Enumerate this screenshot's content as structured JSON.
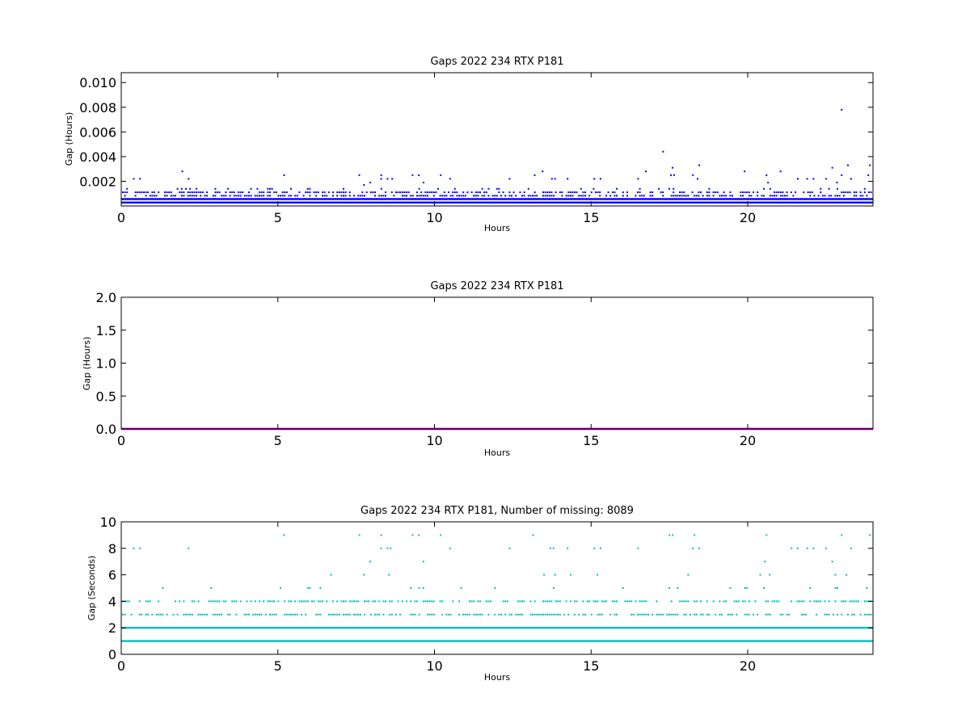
{
  "chart_data": [
    {
      "type": "scatter",
      "title": "Gaps 2022 234 RTX  P181",
      "xlabel": "Hours",
      "ylabel": "Gap (Hours)",
      "xlim": [
        0,
        24
      ],
      "ylim": [
        0,
        0.0108
      ],
      "xticks": [
        0,
        5,
        10,
        15,
        20
      ],
      "xtick_labels": [
        "0",
        "5",
        "10",
        "15",
        "20"
      ],
      "yticks": [
        0.002,
        0.004,
        0.006,
        0.008,
        0.01
      ],
      "ytick_labels": [
        "0.002",
        "0.004",
        "0.006",
        "0.008",
        "0.010"
      ],
      "grid": false,
      "color": "#0000ff",
      "series": [
        {
          "levels": [
            {
              "y": 0.00028,
              "density": 1.0
            },
            {
              "y": 0.00056,
              "density": 1.0
            },
            {
              "y": 0.00083,
              "density": 0.6
            },
            {
              "y": 0.00111,
              "density": 0.5
            },
            {
              "y": 0.00139,
              "density": 0.08
            }
          ],
          "outliers": [
            {
              "x": 0.4,
              "y": 0.0022
            },
            {
              "x": 0.6,
              "y": 0.0022
            },
            {
              "x": 1.95,
              "y": 0.0028
            },
            {
              "x": 2.15,
              "y": 0.0022
            },
            {
              "x": 5.2,
              "y": 0.0025
            },
            {
              "x": 7.6,
              "y": 0.0025
            },
            {
              "x": 7.75,
              "y": 0.0017
            },
            {
              "x": 7.95,
              "y": 0.0019
            },
            {
              "x": 8.3,
              "y": 0.0025
            },
            {
              "x": 8.3,
              "y": 0.0022
            },
            {
              "x": 8.5,
              "y": 0.0022
            },
            {
              "x": 8.65,
              "y": 0.0022
            },
            {
              "x": 9.3,
              "y": 0.0025
            },
            {
              "x": 9.5,
              "y": 0.0025
            },
            {
              "x": 9.65,
              "y": 0.0019
            },
            {
              "x": 10.2,
              "y": 0.0025
            },
            {
              "x": 10.5,
              "y": 0.0022
            },
            {
              "x": 12.4,
              "y": 0.0022
            },
            {
              "x": 13.2,
              "y": 0.0025
            },
            {
              "x": 13.45,
              "y": 0.0028
            },
            {
              "x": 13.75,
              "y": 0.0022
            },
            {
              "x": 13.85,
              "y": 0.0022
            },
            {
              "x": 14.25,
              "y": 0.0022
            },
            {
              "x": 15.1,
              "y": 0.0022
            },
            {
              "x": 15.3,
              "y": 0.0022
            },
            {
              "x": 16.5,
              "y": 0.0022
            },
            {
              "x": 16.75,
              "y": 0.0028
            },
            {
              "x": 17.3,
              "y": 0.0044
            },
            {
              "x": 17.55,
              "y": 0.0025
            },
            {
              "x": 17.6,
              "y": 0.0031
            },
            {
              "x": 17.65,
              "y": 0.0025
            },
            {
              "x": 18.25,
              "y": 0.0025
            },
            {
              "x": 18.4,
              "y": 0.0022
            },
            {
              "x": 18.45,
              "y": 0.0033
            },
            {
              "x": 19.9,
              "y": 0.0028
            },
            {
              "x": 20.6,
              "y": 0.0025
            },
            {
              "x": 20.65,
              "y": 0.0019
            },
            {
              "x": 21.05,
              "y": 0.0028
            },
            {
              "x": 21.6,
              "y": 0.0022
            },
            {
              "x": 21.9,
              "y": 0.0022
            },
            {
              "x": 22.1,
              "y": 0.0022
            },
            {
              "x": 22.5,
              "y": 0.0022
            },
            {
              "x": 22.7,
              "y": 0.0031
            },
            {
              "x": 22.85,
              "y": 0.0019
            },
            {
              "x": 23.0,
              "y": 0.0078
            },
            {
              "x": 23.0,
              "y": 0.0025
            },
            {
              "x": 23.2,
              "y": 0.0033
            },
            {
              "x": 23.3,
              "y": 0.0022
            },
            {
              "x": 23.85,
              "y": 0.0025
            },
            {
              "x": 23.9,
              "y": 0.0033
            }
          ]
        }
      ]
    },
    {
      "type": "scatter",
      "title": "Gaps 2022 234 RTX  P181",
      "xlabel": "Hours",
      "ylabel": "Gap (Hours)",
      "xlim": [
        0,
        24
      ],
      "ylim": [
        0,
        2.0
      ],
      "xticks": [
        0,
        5,
        10,
        15,
        20
      ],
      "xtick_labels": [
        "0",
        "5",
        "10",
        "15",
        "20"
      ],
      "yticks": [
        0.0,
        0.5,
        1.0,
        1.5,
        2.0
      ],
      "ytick_labels": [
        "0.0",
        "0.5",
        "1.0",
        "1.5",
        "2.0"
      ],
      "grid": false,
      "color": "#bf00bf",
      "series": [
        {
          "levels": [
            {
              "y": 0.0,
              "density": 1.0
            },
            {
              "y": 0.0006,
              "density": 1.0
            }
          ],
          "outliers": []
        }
      ]
    },
    {
      "type": "scatter",
      "title": "Gaps 2022 234 RTX  P181, Number of missing: 8089",
      "xlabel": "Hours",
      "ylabel": "Gap (Seconds)",
      "xlim": [
        0,
        24
      ],
      "ylim": [
        0,
        10
      ],
      "xticks": [
        0,
        5,
        10,
        15,
        20
      ],
      "xtick_labels": [
        "0",
        "5",
        "10",
        "15",
        "20"
      ],
      "yticks": [
        0,
        2,
        4,
        6,
        8,
        10
      ],
      "ytick_labels": [
        "0",
        "2",
        "4",
        "6",
        "8",
        "10"
      ],
      "grid": false,
      "color": "#00bfbf",
      "series": [
        {
          "levels": [
            {
              "y": 1,
              "density": 1.0
            },
            {
              "y": 2,
              "density": 1.0
            },
            {
              "y": 3,
              "density": 0.6
            },
            {
              "y": 4,
              "density": 0.5
            },
            {
              "y": 5,
              "density": 0.08
            }
          ],
          "outliers": [
            {
              "x": 0.4,
              "y": 8
            },
            {
              "x": 0.6,
              "y": 8
            },
            {
              "x": 2.15,
              "y": 8
            },
            {
              "x": 5.2,
              "y": 9
            },
            {
              "x": 6.7,
              "y": 6
            },
            {
              "x": 7.6,
              "y": 9
            },
            {
              "x": 7.75,
              "y": 6
            },
            {
              "x": 7.95,
              "y": 7
            },
            {
              "x": 8.3,
              "y": 9
            },
            {
              "x": 8.3,
              "y": 8
            },
            {
              "x": 8.5,
              "y": 8
            },
            {
              "x": 8.6,
              "y": 8
            },
            {
              "x": 8.55,
              "y": 6
            },
            {
              "x": 9.3,
              "y": 9
            },
            {
              "x": 9.5,
              "y": 9
            },
            {
              "x": 9.65,
              "y": 7
            },
            {
              "x": 10.2,
              "y": 9
            },
            {
              "x": 10.5,
              "y": 8
            },
            {
              "x": 12.4,
              "y": 8
            },
            {
              "x": 13.15,
              "y": 9
            },
            {
              "x": 13.5,
              "y": 6
            },
            {
              "x": 13.7,
              "y": 8
            },
            {
              "x": 13.8,
              "y": 8
            },
            {
              "x": 13.85,
              "y": 6
            },
            {
              "x": 14.25,
              "y": 8
            },
            {
              "x": 14.35,
              "y": 6
            },
            {
              "x": 15.1,
              "y": 8
            },
            {
              "x": 15.2,
              "y": 6
            },
            {
              "x": 15.3,
              "y": 8
            },
            {
              "x": 16.5,
              "y": 8
            },
            {
              "x": 17.5,
              "y": 9
            },
            {
              "x": 17.6,
              "y": 9
            },
            {
              "x": 18.1,
              "y": 6
            },
            {
              "x": 18.25,
              "y": 8
            },
            {
              "x": 18.3,
              "y": 9
            },
            {
              "x": 18.45,
              "y": 8
            },
            {
              "x": 20.4,
              "y": 6
            },
            {
              "x": 20.55,
              "y": 7
            },
            {
              "x": 20.6,
              "y": 9
            },
            {
              "x": 20.7,
              "y": 6
            },
            {
              "x": 21.4,
              "y": 8
            },
            {
              "x": 21.6,
              "y": 8
            },
            {
              "x": 21.9,
              "y": 8
            },
            {
              "x": 22.1,
              "y": 8
            },
            {
              "x": 22.5,
              "y": 8
            },
            {
              "x": 22.7,
              "y": 7
            },
            {
              "x": 22.8,
              "y": 6
            },
            {
              "x": 23.0,
              "y": 9
            },
            {
              "x": 23.15,
              "y": 6
            },
            {
              "x": 23.3,
              "y": 8
            },
            {
              "x": 23.9,
              "y": 9
            }
          ]
        }
      ]
    }
  ]
}
